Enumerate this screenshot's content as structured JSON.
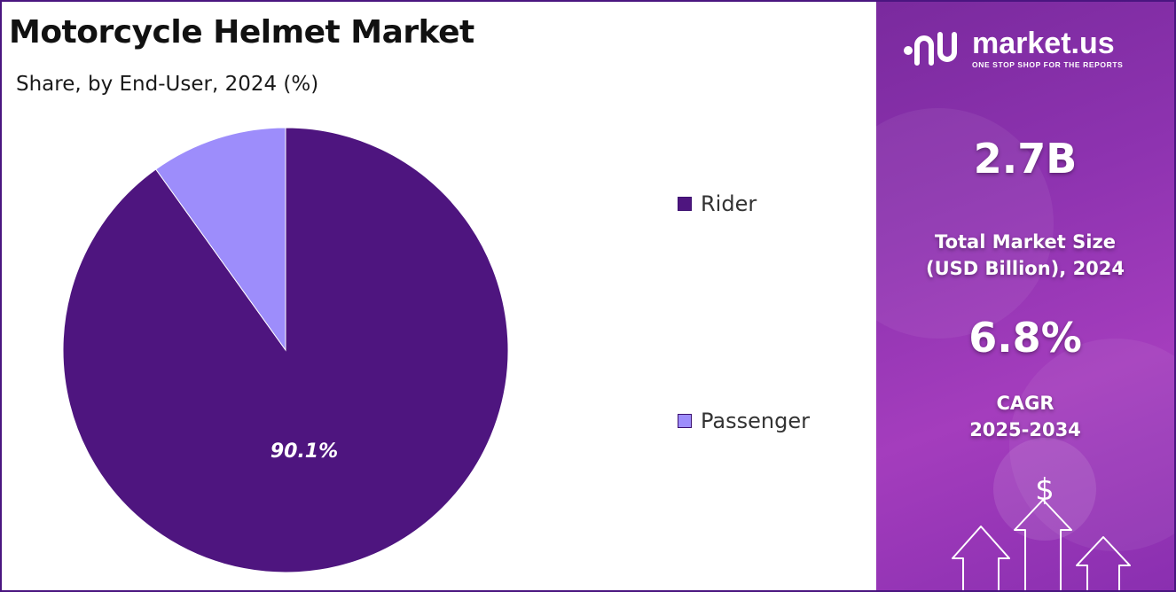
{
  "chart_data": {
    "type": "pie",
    "title": "Motorcycle Helmet Market",
    "subtitle": "Share, by End-User, 2024 (%)",
    "slices": [
      {
        "label": "Rider",
        "value": 90.1,
        "color": "#4e157f",
        "data_label": "90.1%"
      },
      {
        "label": "Passenger",
        "value": 9.9,
        "color": "#9d8dfb",
        "data_label": ""
      }
    ],
    "legend_placement": "right"
  },
  "brand": {
    "name": "market.us",
    "tagline": "ONE STOP SHOP FOR THE REPORTS",
    "icon": "market-us-logo-icon"
  },
  "stats": {
    "market_size_value": "2.7B",
    "market_size_label_line1": "Total Market Size",
    "market_size_label_line2": "(USD Billion), 2024",
    "cagr_value": "6.8%",
    "cagr_label_line1": "CAGR",
    "cagr_label_line2": "2025-2034",
    "currency_symbol": "$"
  },
  "colors": {
    "accent_dark": "#4e157f",
    "accent_light": "#9d8dfb",
    "panel": "#8e33b0"
  }
}
